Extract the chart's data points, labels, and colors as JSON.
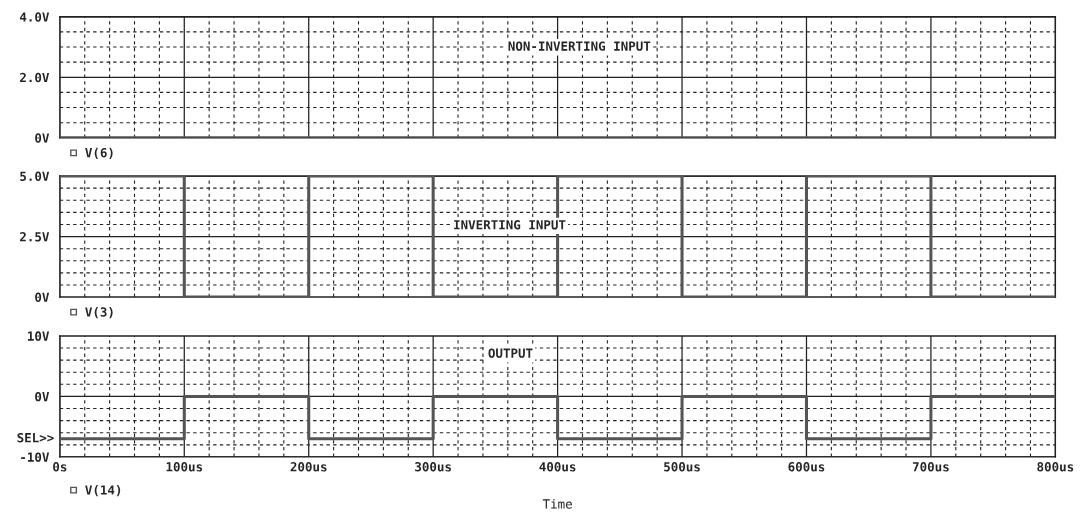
{
  "chart_data": [
    {
      "type": "step",
      "x": [
        0,
        100,
        200,
        300,
        400,
        500,
        600,
        700,
        800
      ],
      "series": [
        {
          "name": "V(6)",
          "color": "#555555",
          "values": [
            0,
            0,
            0,
            0,
            0,
            0,
            0,
            0,
            0
          ]
        }
      ],
      "xlim": [
        0,
        800
      ],
      "xticks": [
        0,
        100,
        200,
        300,
        400,
        500,
        600,
        700,
        800
      ],
      "ylim": [
        0,
        4
      ],
      "yticks": [
        {
          "value": 0,
          "label": "0V"
        },
        {
          "value": 2,
          "label": "2.0V"
        },
        {
          "value": 4,
          "label": "4.0V"
        }
      ],
      "annotations": [
        "NON-INVERTING INPUT"
      ],
      "grid": true,
      "legend": "bottom left",
      "tick_labels": "y"
    },
    {
      "type": "step",
      "x": [
        0,
        100,
        200,
        300,
        400,
        500,
        600,
        700,
        800
      ],
      "series": [
        {
          "name": "V(3)",
          "color": "#555555",
          "values": [
            5,
            0,
            5,
            0,
            5,
            0,
            5,
            0,
            0
          ]
        }
      ],
      "xlim": [
        0,
        800
      ],
      "xticks": [
        0,
        100,
        200,
        300,
        400,
        500,
        600,
        700,
        800
      ],
      "ylim": [
        0,
        5
      ],
      "yticks": [
        {
          "value": 0,
          "label": "0V"
        },
        {
          "value": 2.5,
          "label": "2.5V"
        },
        {
          "value": 5,
          "label": "5.0V"
        }
      ],
      "annotations": [
        "INVERTING INPUT"
      ],
      "grid": true,
      "legend": "bottom left",
      "tick_labels": "y"
    },
    {
      "type": "step",
      "x": [
        0,
        100,
        200,
        300,
        400,
        500,
        600,
        700,
        800
      ],
      "series": [
        {
          "name": "V(14)",
          "color": "#555555",
          "values": [
            -7,
            0,
            -7,
            0,
            -7,
            0,
            -7,
            0,
            0
          ]
        }
      ],
      "xlim": [
        0,
        800
      ],
      "xticks": [
        {
          "value": 0,
          "label": "0s"
        },
        {
          "value": 100,
          "label": "100us"
        },
        {
          "value": 200,
          "label": "200us"
        },
        {
          "value": 300,
          "label": "300us"
        },
        {
          "value": 400,
          "label": "400us"
        },
        {
          "value": 500,
          "label": "500us"
        },
        {
          "value": 600,
          "label": "600us"
        },
        {
          "value": 700,
          "label": "700us"
        },
        {
          "value": 800,
          "label": "800us"
        }
      ],
      "ylim": [
        -10,
        10
      ],
      "yticks": [
        {
          "value": -10,
          "label": "-10V"
        },
        {
          "value": 0,
          "label": "0V"
        },
        {
          "value": 10,
          "label": "10V"
        }
      ],
      "xlabel": "Time",
      "annotations": [
        "OUTPUT",
        "SEL>>"
      ],
      "grid": true,
      "legend": "bottom left"
    }
  ]
}
